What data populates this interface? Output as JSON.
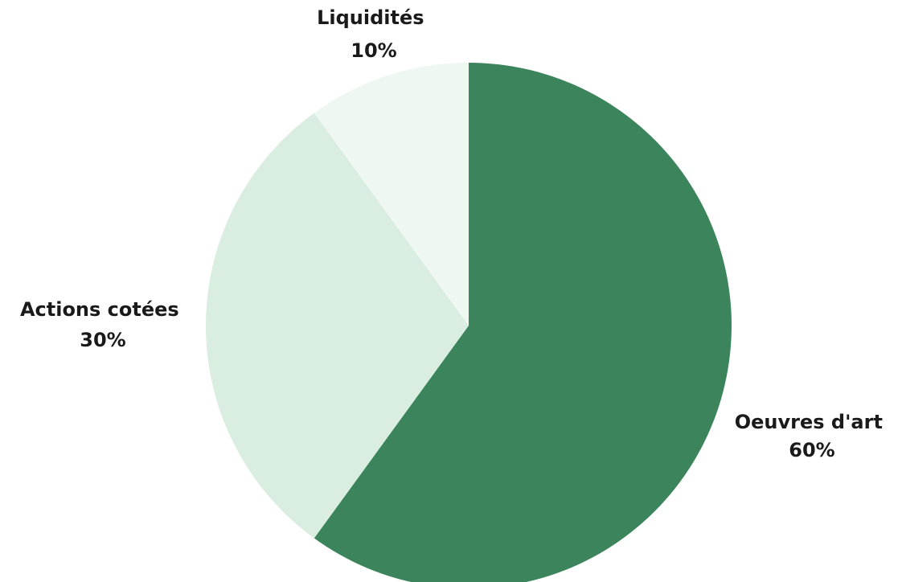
{
  "chart_data": {
    "type": "pie",
    "start_angle": "12 o'clock",
    "direction": "clockwise",
    "slices": [
      {
        "label": "Oeuvres d'art",
        "value": 60,
        "value_label": "60%",
        "color": "#3c855c"
      },
      {
        "label": "Actions cotées",
        "value": 30,
        "value_label": "30%",
        "color": "#daede1"
      },
      {
        "label": "Liquidités",
        "value": 10,
        "value_label": "10%",
        "color": "#eff7f1"
      }
    ]
  }
}
